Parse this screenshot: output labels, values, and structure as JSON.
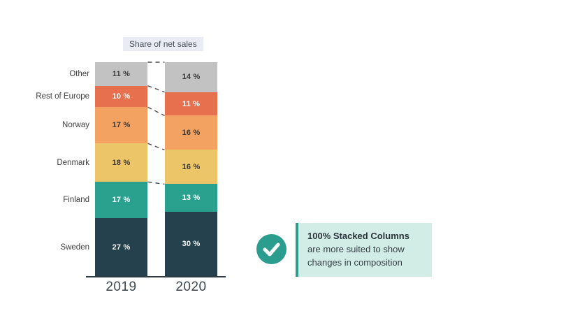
{
  "chart_data": {
    "type": "bar",
    "subtype": "100-percent-stacked-columns",
    "title": "Share of net sales",
    "categories": [
      "2019",
      "2020"
    ],
    "value_suffix": " %",
    "ylim": [
      0,
      100
    ],
    "gridlines": false,
    "legend_position": "left-category-labels",
    "stack_order": "top-to-bottom",
    "series": [
      {
        "name": "Other",
        "values": [
          11,
          14
        ],
        "color": "#c2c2c2",
        "label_color": "#3a3a3a"
      },
      {
        "name": "Rest of Europe",
        "values": [
          10,
          11
        ],
        "color": "#e7704f",
        "label_color": "#ffffff"
      },
      {
        "name": "Norway",
        "values": [
          17,
          16
        ],
        "color": "#f4a261",
        "label_color": "#3a3a3a"
      },
      {
        "name": "Denmark",
        "values": [
          18,
          16
        ],
        "color": "#ebc568",
        "label_color": "#3a3a3a"
      },
      {
        "name": "Finland",
        "values": [
          17,
          13
        ],
        "color": "#2aa08f",
        "label_color": "#ffffff"
      },
      {
        "name": "Sweden",
        "values": [
          27,
          30
        ],
        "color": "#25414d",
        "label_color": "#f5f5f5"
      }
    ]
  },
  "note": {
    "bold_text": "100% Stacked Columns",
    "rest_text": " are more suited to show changes in composition"
  },
  "colors": {
    "accent_teal": "#2a9d8f",
    "note_background": "#d2ece6",
    "title_chip_background": "#e9edf3",
    "axis": "#2f3b42",
    "connector": "#4d4d4d",
    "background": "#ffffff"
  }
}
